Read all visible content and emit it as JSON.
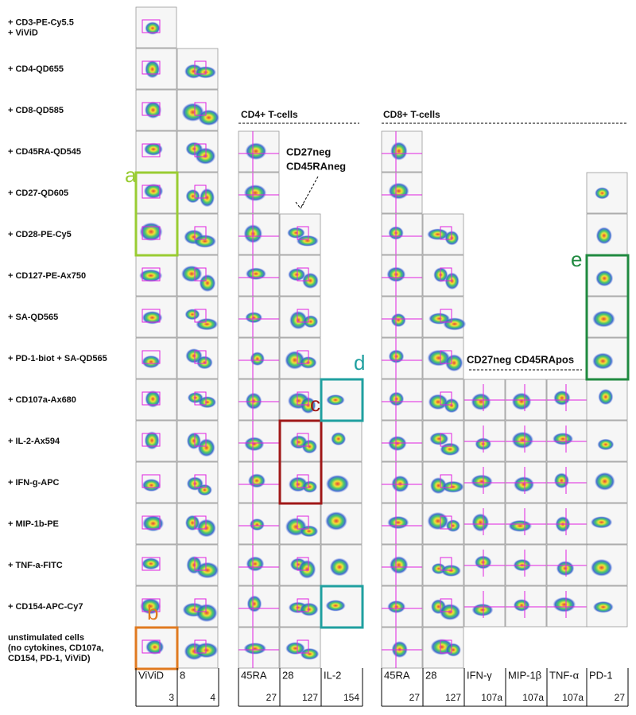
{
  "row_labels": [
    [
      "+ CD3-PE-Cy5.5",
      "+ ViViD"
    ],
    [
      "+ CD4-QD655"
    ],
    [
      "+ CD8-QD585"
    ],
    [
      "+ CD45RA-QD545"
    ],
    [
      "+ CD27-QD605"
    ],
    [
      "+ CD28-PE-Cy5"
    ],
    [
      "+ CD127-PE-Ax750"
    ],
    [
      "+ SA-QD565"
    ],
    [
      "+ PD-1-biot + SA-QD565"
    ],
    [
      "+ CD107a-Ax680"
    ],
    [
      "+ IL-2-Ax594"
    ],
    [
      "+ IFN-g-APC"
    ],
    [
      "+ MIP-1b-PE"
    ],
    [
      "+ TNF-a-FITC"
    ],
    [
      "+ CD154-APC-Cy7"
    ],
    [
      "unstimulated cells",
      "(no cytokines, CD107a,",
      "CD154, PD-1, ViViD)"
    ]
  ],
  "sections": {
    "cd4": "CD4+ T-cells",
    "cd8": "CD8+ T-cells"
  },
  "annotations": {
    "cd45raneg": [
      "CD27neg",
      "CD45RAneg"
    ],
    "cd45rapos": "CD27neg CD45RApos"
  },
  "callouts": [
    "a",
    "b",
    "c",
    "d",
    "e"
  ],
  "columns": [
    {
      "label": "ViViD",
      "number": 3
    },
    {
      "label": "8",
      "number": 4
    },
    {
      "label": "45RA",
      "number": 27
    },
    {
      "label": "28",
      "number": 127
    },
    {
      "label": "IL-2",
      "number": 154
    },
    {
      "label": "45RA",
      "number": 27
    },
    {
      "label": "28",
      "number": 127
    },
    {
      "label": "IFN-γ",
      "number": "107a"
    },
    {
      "label": "MIP-1β",
      "number": "107a"
    },
    {
      "label": "TNF-α",
      "number": "107a"
    },
    {
      "label": "PD-1",
      "number": 27
    }
  ]
}
